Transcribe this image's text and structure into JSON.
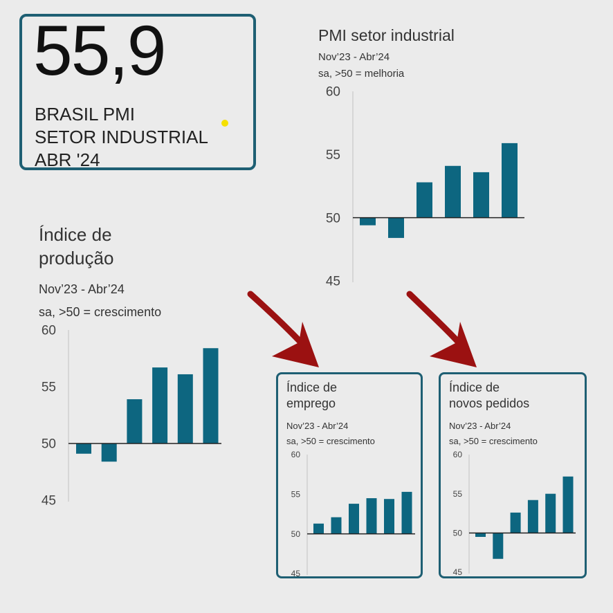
{
  "hero": {
    "value": "55,9",
    "line1": "BRASIL PMI",
    "line2": "SETOR INDUSTRIAL",
    "line3": "ABR '24"
  },
  "colors": {
    "bar": "#0d6680",
    "border": "#1e5f73",
    "arrow": "#9b1111",
    "dot": "#f5e000"
  },
  "chart_data": [
    {
      "id": "pmi",
      "type": "bar",
      "title": "PMI setor industrial",
      "period": "Nov’23 - Abr’24",
      "note": "sa, >50 = melhoria",
      "baseline": 50,
      "ylim": [
        45,
        60
      ],
      "yticks": [
        60,
        55,
        50,
        45
      ],
      "values": [
        49.4,
        48.4,
        52.8,
        54.1,
        53.6,
        55.9
      ]
    },
    {
      "id": "producao",
      "type": "bar",
      "title_line1": "Índice de",
      "title_line2": "produção",
      "period": "Nov’23 - Abr’24",
      "note": "sa, >50 = crescimento",
      "baseline": 50,
      "ylim": [
        45,
        60
      ],
      "yticks": [
        60,
        55,
        50,
        45
      ],
      "values": [
        49.1,
        48.4,
        53.9,
        56.7,
        56.1,
        58.4
      ]
    },
    {
      "id": "emprego",
      "type": "bar",
      "title_line1": "Índice de",
      "title_line2": "emprego",
      "period": "Nov’23 - Abr’24",
      "note": "sa, >50 = crescimento",
      "baseline": 50,
      "ylim": [
        45,
        60
      ],
      "yticks": [
        60,
        55,
        50,
        45
      ],
      "values": [
        51.3,
        52.1,
        53.8,
        54.5,
        54.4,
        55.3
      ]
    },
    {
      "id": "pedidos",
      "type": "bar",
      "title_line1": "Índice de",
      "title_line2": "novos pedidos",
      "period": "Nov’23 - Abr’24",
      "note": "sa, >50 = crescimento",
      "baseline": 50,
      "ylim": [
        45,
        60
      ],
      "yticks": [
        60,
        55,
        50,
        45
      ],
      "values": [
        49.5,
        46.7,
        52.6,
        54.2,
        55.0,
        57.2
      ]
    }
  ]
}
